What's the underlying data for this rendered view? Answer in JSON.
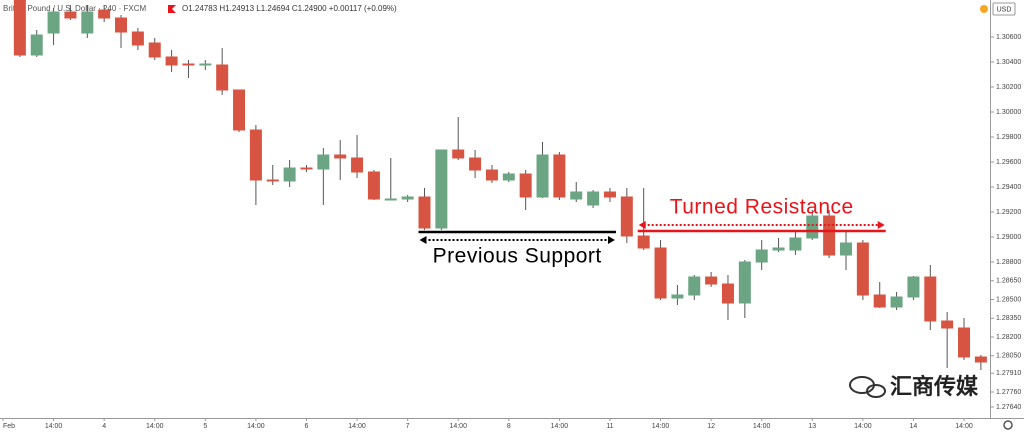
{
  "chart_data": {
    "type": "candlestick",
    "title": "British Pound / U.S. Dollar · 240 · FXCM",
    "subtitle": "O1.24783 H1.24913 L1.24694 C1.24900 +0.00117 (+0.09%)",
    "currency": "USD",
    "watermark": "汇商传媒",
    "up_color": "#6ba583",
    "down_color": "#d75442",
    "wick_color": "#555555",
    "categories": [
      "Feb",
      null,
      null,
      "14:00",
      null,
      null,
      "4",
      null,
      null,
      "14:00",
      null,
      null,
      "5",
      null,
      null,
      "14:00",
      null,
      null,
      "6",
      null,
      null,
      "14:00",
      null,
      null,
      "7",
      null,
      null,
      "14:00",
      null,
      null,
      "8",
      null,
      null,
      "14:00",
      null,
      null,
      "11",
      null,
      null,
      "14:00",
      null,
      null,
      "12",
      null,
      null,
      "14:00",
      null,
      null,
      "13",
      null,
      null,
      "14:00",
      null,
      null,
      "14",
      null,
      null,
      "14:00",
      null
    ],
    "open": [
      null,
      1.30896,
      1.30456,
      1.30632,
      1.308,
      1.30632,
      1.30816,
      1.30752,
      1.3064,
      1.30552,
      1.3044,
      1.30384,
      1.30376,
      1.30376,
      1.30176,
      1.29856,
      1.29456,
      1.29448,
      1.29552,
      1.29544,
      1.29656,
      1.29632,
      1.2952,
      1.29304,
      1.29304,
      1.2932,
      1.29072,
      1.29696,
      1.29632,
      1.29536,
      1.29456,
      1.29504,
      1.2932,
      1.29656,
      1.29304,
      1.29256,
      1.2936,
      1.2932,
      1.29008,
      1.28912,
      1.28512,
      1.28536,
      1.2868,
      1.28624,
      1.28472,
      1.288,
      1.28896,
      1.28896,
      1.28992,
      1.29168,
      1.28856,
      1.28952,
      1.28536,
      1.2844,
      1.2852,
      1.2868,
      1.28328,
      1.28272,
      1.2804
    ],
    "close": [
      null,
      1.30456,
      1.30616,
      1.308,
      1.30752,
      1.308,
      1.30752,
      1.3064,
      1.30536,
      1.3044,
      1.30376,
      1.30376,
      1.30384,
      1.30176,
      1.29856,
      1.29456,
      1.29448,
      1.29552,
      1.29544,
      1.29656,
      1.29632,
      1.2952,
      1.29304,
      1.29304,
      1.2932,
      1.29072,
      1.29696,
      1.29632,
      1.29536,
      1.29456,
      1.29504,
      1.2932,
      1.29656,
      1.2932,
      1.2936,
      1.2936,
      1.2932,
      1.29008,
      1.28912,
      1.28512,
      1.28536,
      1.2868,
      1.28624,
      1.28472,
      1.288,
      1.28896,
      1.28912,
      1.28992,
      1.29168,
      1.28856,
      1.28952,
      1.28536,
      1.2844,
      1.2852,
      1.2868,
      1.28328,
      1.28272,
      1.2804,
      1.28
    ],
    "high": [
      null,
      1.30896,
      1.30656,
      1.30832,
      1.30856,
      1.30856,
      1.30856,
      1.30776,
      1.30672,
      1.30592,
      1.30496,
      1.30416,
      1.30416,
      1.30512,
      1.30176,
      1.29896,
      1.29576,
      1.29616,
      1.29576,
      1.29712,
      1.29776,
      1.29816,
      1.29536,
      1.29632,
      1.29336,
      1.29392,
      1.29696,
      1.2996,
      1.29696,
      1.29576,
      1.2952,
      1.29536,
      1.2976,
      1.2968,
      1.2944,
      1.29376,
      1.29392,
      1.29392,
      1.29392,
      1.28976,
      1.28616,
      1.28696,
      1.2872,
      1.28696,
      1.28816,
      1.28976,
      1.28992,
      1.2904,
      1.29216,
      1.29216,
      1.2904,
      1.28976,
      1.2864,
      1.2856,
      1.28688,
      1.28776,
      1.284,
      1.28352,
      1.28056
    ],
    "low": [
      null,
      1.3044,
      1.3044,
      1.30536,
      1.30736,
      1.30592,
      1.3072,
      1.30512,
      1.30496,
      1.30416,
      1.3032,
      1.30272,
      1.30336,
      1.30136,
      1.2984,
      1.29256,
      1.29416,
      1.294,
      1.2952,
      1.29256,
      1.29456,
      1.29472,
      1.29296,
      1.29296,
      1.2928,
      1.29056,
      1.29056,
      1.29616,
      1.29472,
      1.29432,
      1.2944,
      1.29216,
      1.29312,
      1.29296,
      1.2928,
      1.29232,
      1.2928,
      1.28952,
      1.28896,
      1.28496,
      1.28456,
      1.28496,
      1.286,
      1.28336,
      1.28352,
      1.28736,
      1.2888,
      1.28856,
      1.28976,
      1.28832,
      1.28736,
      1.28496,
      1.28432,
      1.28416,
      1.28496,
      1.28256,
      1.27952,
      1.28016,
      1.27936
    ],
    "ylim": [
      1.27576,
      1.30896
    ],
    "yticks": [
      {
        "value": 1.306,
        "label": "1.30600"
      },
      {
        "value": 1.304,
        "label": "1.30400"
      },
      {
        "value": 1.302,
        "label": "1.30200"
      },
      {
        "value": 1.3,
        "label": "1.30000"
      },
      {
        "value": 1.298,
        "label": "1.29800"
      },
      {
        "value": 1.296,
        "label": "1.29600"
      },
      {
        "value": 1.294,
        "label": "1.29400"
      },
      {
        "value": 1.292,
        "label": "1.29200"
      },
      {
        "value": 1.29,
        "label": "1.29000"
      },
      {
        "value": 1.288,
        "label": "1.28800"
      },
      {
        "value": 1.2865,
        "label": "1.28650"
      },
      {
        "value": 1.285,
        "label": "1.28500"
      },
      {
        "value": 1.2835,
        "label": "1.28350"
      },
      {
        "value": 1.282,
        "label": "1.28200"
      },
      {
        "value": 1.2805,
        "label": "1.28050"
      },
      {
        "value": 1.2791,
        "label": "1.27910"
      },
      {
        "value": 1.2776,
        "label": "1.27760"
      },
      {
        "value": 1.2764,
        "label": "1.27640"
      }
    ],
    "annotations": [
      {
        "text": "Previous Support",
        "value": 1.2904,
        "from": 25,
        "to": 36,
        "color": "#000000",
        "label_side": "below"
      },
      {
        "text": "Turned Resistance",
        "value": 1.29048,
        "from": 38,
        "to": 52,
        "color": "#e8141c",
        "label_side": "above"
      }
    ]
  }
}
